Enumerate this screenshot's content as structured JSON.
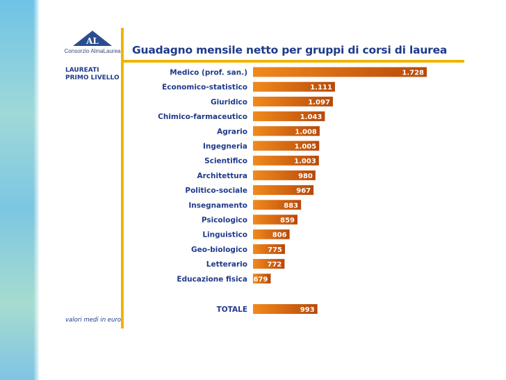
{
  "logo": {
    "mark_text": "AL",
    "caption": "Consorzio AlmaLaurea"
  },
  "colors": {
    "bar_start": "#f08a1c",
    "bar_end": "#b8490a",
    "rule": "#f0b400",
    "text": "#1f3a8a",
    "logo": "#2a4d8f"
  },
  "group_label": [
    "LAUREATI",
    "PRIMO LIVELLO"
  ],
  "footnote": "valori medi in euro",
  "chart_data": {
    "type": "bar",
    "orientation": "horizontal",
    "title": "Guadagno mensile netto per gruppi di corsi di laurea",
    "categories": [
      "Medico (prof. san.)",
      "Economico-statistico",
      "Giuridico",
      "Chimico-farmaceutico",
      "Agrario",
      "Ingegneria",
      "Scientifico",
      "Architettura",
      "Politico-sociale",
      "Insegnamento",
      "Psicologico",
      "Linguistico",
      "Geo-biologico",
      "Letterario",
      "Educazione fisica"
    ],
    "values": [
      1728,
      1111,
      1097,
      1043,
      1008,
      1005,
      1003,
      980,
      967,
      883,
      859,
      806,
      775,
      772,
      679
    ],
    "value_labels": [
      "1.728",
      "1.111",
      "1.097",
      "1.043",
      "1.008",
      "1.005",
      "1.003",
      "980",
      "967",
      "883",
      "859",
      "806",
      "775",
      "772",
      "679"
    ],
    "total": {
      "label": "TOTALE",
      "value": 993,
      "value_label": "993"
    },
    "xlim": [
      560,
      1728
    ],
    "grid": false,
    "legend": "none"
  }
}
